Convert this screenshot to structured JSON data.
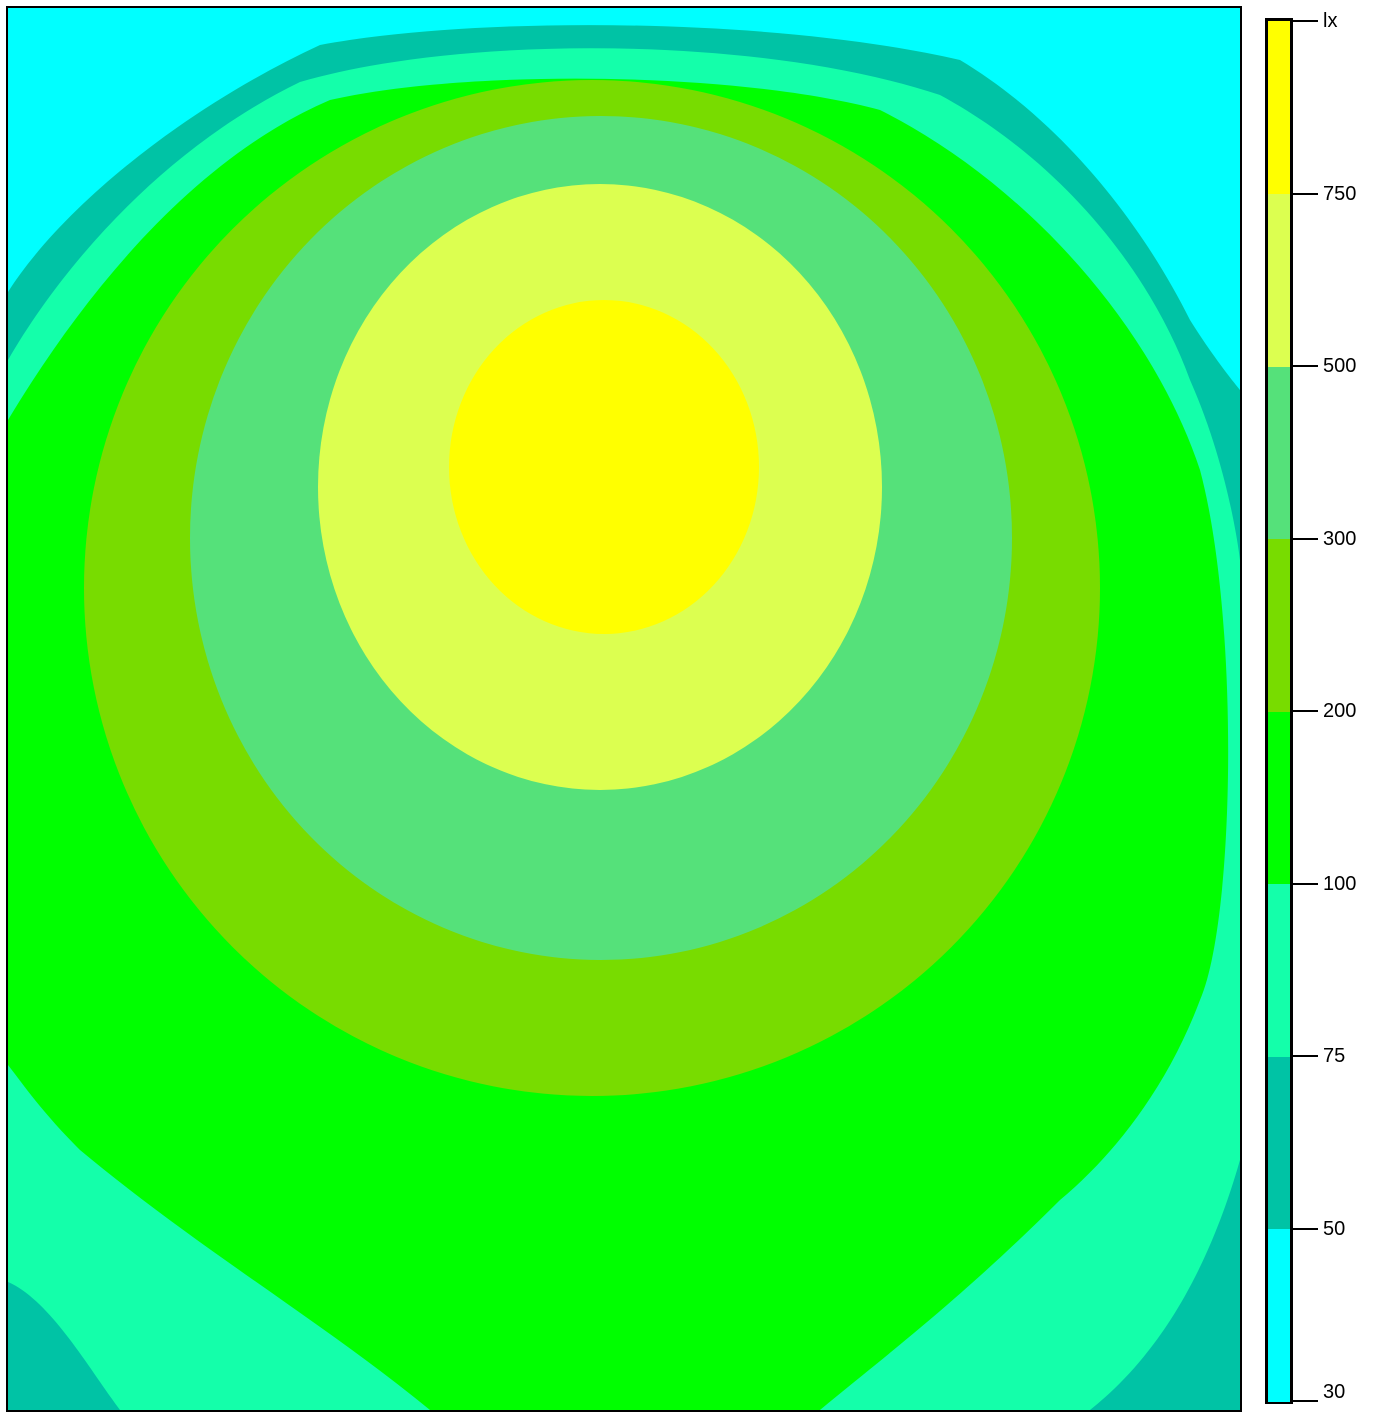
{
  "chart_data": {
    "type": "heatmap",
    "title": "",
    "colorbar": {
      "unit": "lx",
      "levels": [
        30,
        50,
        75,
        100,
        200,
        300,
        500,
        750
      ],
      "tick_labels": [
        "30",
        "50",
        "75",
        "100",
        "200",
        "300",
        "500",
        "750"
      ],
      "band_colors": [
        "#00ffff",
        "#00c3a5",
        "#14ffaa",
        "#00ff00",
        "#78dc00",
        "#55e17a",
        "#dcff50",
        "#ffff00"
      ]
    },
    "contour_bands": [
      {
        "range": "30–50",
        "color": "#00ffff"
      },
      {
        "range": "50–75",
        "color": "#00c3a5"
      },
      {
        "range": "75–100",
        "color": "#14ffaa"
      },
      {
        "range": "100–200",
        "color": "#00ff00"
      },
      {
        "range": "200–300",
        "color": "#78dc00"
      },
      {
        "range": "300–500",
        "color": "#55e17a"
      },
      {
        "range": "500–750",
        "color": "#dcff50"
      },
      {
        "range": ">750",
        "color": "#ffff00"
      }
    ],
    "grid": false,
    "legend_position": "right"
  }
}
